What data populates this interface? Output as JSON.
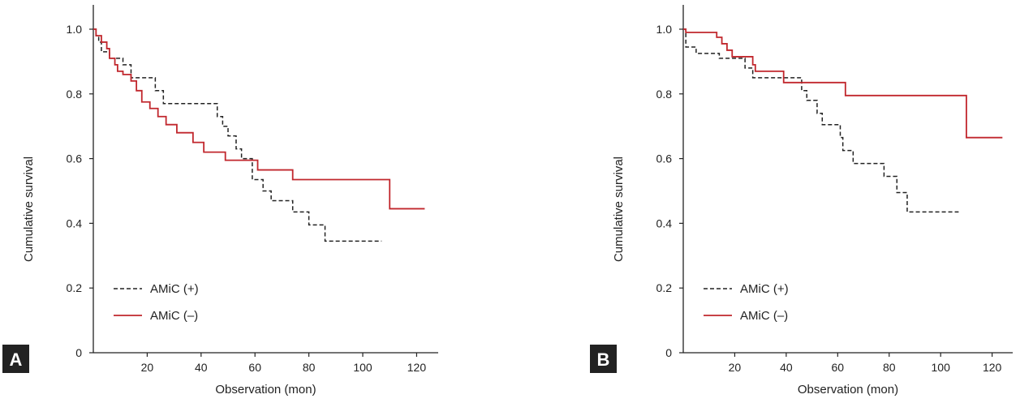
{
  "colors": {
    "plus": "#222222",
    "minus": "#c1272d",
    "badge_bg": "#222222"
  },
  "chart_data": [
    {
      "type": "line",
      "panel_label": "A",
      "xlabel": "Observation (mon)",
      "ylabel": "Cumulative survival",
      "xlim": [
        0,
        128
      ],
      "ylim": [
        0,
        1.0
      ],
      "xticks": [
        "20",
        "40",
        "60",
        "80",
        "100",
        "120"
      ],
      "xtick_values": [
        20,
        40,
        60,
        80,
        100,
        120
      ],
      "yticks": [
        "0",
        "0.2",
        "0.4",
        "0.6",
        "0.8",
        "1.0"
      ],
      "ytick_values": [
        0,
        0.2,
        0.4,
        0.6,
        0.8,
        1.0
      ],
      "legend_position": "bottom-left",
      "series": [
        {
          "name": "AMiC (+)",
          "style": "dashed",
          "color_key": "plus",
          "steps": [
            [
              0,
              1.0
            ],
            [
              1,
              0.98
            ],
            [
              2,
              0.96
            ],
            [
              3,
              0.93
            ],
            [
              6,
              0.91
            ],
            [
              11,
              0.89
            ],
            [
              14,
              0.85
            ],
            [
              23,
              0.81
            ],
            [
              26,
              0.77
            ],
            [
              46,
              0.73
            ],
            [
              48,
              0.7
            ],
            [
              50,
              0.67
            ],
            [
              53,
              0.63
            ],
            [
              55,
              0.6
            ],
            [
              59,
              0.535
            ],
            [
              63,
              0.5
            ],
            [
              66,
              0.47
            ],
            [
              74,
              0.435
            ],
            [
              80,
              0.395
            ],
            [
              86,
              0.345
            ],
            [
              107,
              0.345
            ]
          ]
        },
        {
          "name": "AMiC (–)",
          "style": "solid",
          "color_key": "minus",
          "steps": [
            [
              0,
              1.0
            ],
            [
              1,
              0.98
            ],
            [
              3,
              0.96
            ],
            [
              5,
              0.94
            ],
            [
              6,
              0.91
            ],
            [
              8,
              0.89
            ],
            [
              9,
              0.87
            ],
            [
              11,
              0.86
            ],
            [
              14,
              0.84
            ],
            [
              16,
              0.81
            ],
            [
              18,
              0.775
            ],
            [
              21,
              0.755
            ],
            [
              24,
              0.73
            ],
            [
              27,
              0.705
            ],
            [
              31,
              0.68
            ],
            [
              37,
              0.65
            ],
            [
              41,
              0.62
            ],
            [
              49,
              0.595
            ],
            [
              61,
              0.565
            ],
            [
              74,
              0.535
            ],
            [
              110,
              0.445
            ],
            [
              123,
              0.445
            ]
          ]
        }
      ]
    },
    {
      "type": "line",
      "panel_label": "B",
      "xlabel": "Observation (mon)",
      "ylabel": "Cumulative survival",
      "xlim": [
        0,
        128
      ],
      "ylim": [
        0,
        1.0
      ],
      "xticks": [
        "20",
        "40",
        "60",
        "80",
        "100",
        "120"
      ],
      "xtick_values": [
        20,
        40,
        60,
        80,
        100,
        120
      ],
      "yticks": [
        "0",
        "0.2",
        "0.4",
        "0.6",
        "0.8",
        "1.0"
      ],
      "ytick_values": [
        0,
        0.2,
        0.4,
        0.6,
        0.8,
        1.0
      ],
      "legend_position": "bottom-left",
      "series": [
        {
          "name": "AMiC (+)",
          "style": "dashed",
          "color_key": "plus",
          "steps": [
            [
              0,
              1.0
            ],
            [
              1,
              0.945
            ],
            [
              5,
              0.925
            ],
            [
              14,
              0.91
            ],
            [
              24,
              0.88
            ],
            [
              27,
              0.85
            ],
            [
              46,
              0.81
            ],
            [
              48,
              0.78
            ],
            [
              52,
              0.74
            ],
            [
              54,
              0.705
            ],
            [
              61,
              0.665
            ],
            [
              62,
              0.625
            ],
            [
              66,
              0.585
            ],
            [
              78,
              0.545
            ],
            [
              83,
              0.495
            ],
            [
              87,
              0.435
            ],
            [
              107,
              0.435
            ]
          ]
        },
        {
          "name": "AMiC (–)",
          "style": "solid",
          "color_key": "minus",
          "steps": [
            [
              0,
              1.0
            ],
            [
              1,
              0.99
            ],
            [
              13,
              0.975
            ],
            [
              15,
              0.955
            ],
            [
              17,
              0.935
            ],
            [
              19,
              0.915
            ],
            [
              27,
              0.89
            ],
            [
              28,
              0.87
            ],
            [
              39,
              0.835
            ],
            [
              63,
              0.795
            ],
            [
              110,
              0.665
            ],
            [
              124,
              0.665
            ]
          ]
        }
      ]
    }
  ]
}
